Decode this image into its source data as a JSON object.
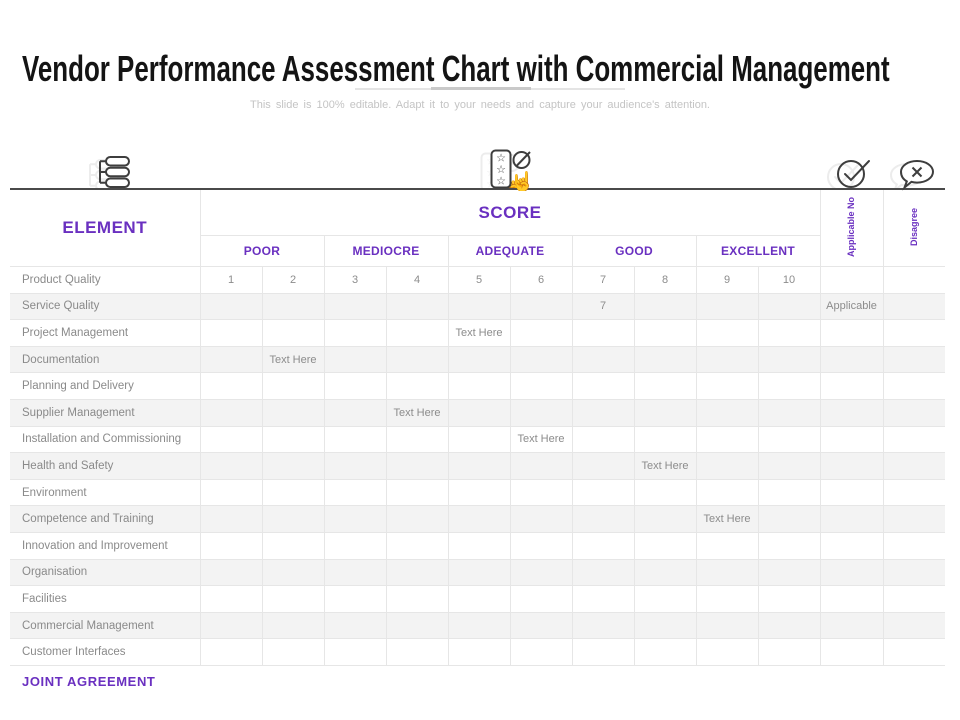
{
  "accent_color": "#6A30C0",
  "row_stripe_color": "#F3F3F3",
  "title": "Vendor Performance Assessment Chart with Commercial Management",
  "subtitle": "This slide is 100% editable. Adapt it to your needs and capture your audience's attention.",
  "icons": {
    "left": "hierarchy-list-icon",
    "center": "star-rating-click-icon",
    "right_check": "check-circle-icon",
    "right_dismiss": "dismiss-speech-bubble-icon"
  },
  "table": {
    "element_header": "ELEMENT",
    "score_header": "SCORE",
    "score_groups": [
      "POOR",
      "MEDIOCRE",
      "ADEQUATE",
      "GOOD",
      "EXCELLENT"
    ],
    "applicable_header": "Applicable No",
    "disagree_header": "Disagree",
    "rows": [
      {
        "label": "Product Quality",
        "cells": [
          "1",
          "2",
          "3",
          "4",
          "5",
          "6",
          "7",
          "8",
          "9",
          "10"
        ],
        "applicable": "",
        "disagree": ""
      },
      {
        "label": "Service Quality",
        "cells": [
          "",
          "",
          "",
          "",
          "",
          "",
          "7",
          "",
          "",
          ""
        ],
        "applicable": "Applicable",
        "disagree": ""
      },
      {
        "label": "Project Management",
        "cells": [
          "",
          "",
          "",
          "",
          "Text Here",
          "",
          "",
          "",
          "",
          ""
        ],
        "applicable": "",
        "disagree": ""
      },
      {
        "label": "Documentation",
        "cells": [
          "",
          "Text Here",
          "",
          "",
          "",
          "",
          "",
          "",
          "",
          ""
        ],
        "applicable": "",
        "disagree": ""
      },
      {
        "label": "Planning and Delivery",
        "cells": [
          "",
          "",
          "",
          "",
          "",
          "",
          "",
          "",
          "",
          ""
        ],
        "applicable": "",
        "disagree": ""
      },
      {
        "label": "Supplier Management",
        "cells": [
          "",
          "",
          "",
          "Text Here",
          "",
          "",
          "",
          "",
          "",
          ""
        ],
        "applicable": "",
        "disagree": ""
      },
      {
        "label": "Installation and Commissioning",
        "cells": [
          "",
          "",
          "",
          "",
          "",
          "Text Here",
          "",
          "",
          "",
          ""
        ],
        "applicable": "",
        "disagree": ""
      },
      {
        "label": "Health and Safety",
        "cells": [
          "",
          "",
          "",
          "",
          "",
          "",
          "",
          "Text Here",
          "",
          ""
        ],
        "applicable": "",
        "disagree": ""
      },
      {
        "label": "Environment",
        "cells": [
          "",
          "",
          "",
          "",
          "",
          "",
          "",
          "",
          "",
          ""
        ],
        "applicable": "",
        "disagree": ""
      },
      {
        "label": "Competence and Training",
        "cells": [
          "",
          "",
          "",
          "",
          "",
          "",
          "",
          "",
          "Text Here",
          ""
        ],
        "applicable": "",
        "disagree": ""
      },
      {
        "label": "Innovation and Improvement",
        "cells": [
          "",
          "",
          "",
          "",
          "",
          "",
          "",
          "",
          "",
          ""
        ],
        "applicable": "",
        "disagree": ""
      },
      {
        "label": "Organisation",
        "cells": [
          "",
          "",
          "",
          "",
          "",
          "",
          "",
          "",
          "",
          ""
        ],
        "applicable": "",
        "disagree": ""
      },
      {
        "label": "Facilities",
        "cells": [
          "",
          "",
          "",
          "",
          "",
          "",
          "",
          "",
          "",
          ""
        ],
        "applicable": "",
        "disagree": ""
      },
      {
        "label": "Commercial Management",
        "cells": [
          "",
          "",
          "",
          "",
          "",
          "",
          "",
          "",
          "",
          ""
        ],
        "applicable": "",
        "disagree": ""
      },
      {
        "label": "Customer Interfaces",
        "cells": [
          "",
          "",
          "",
          "",
          "",
          "",
          "",
          "",
          "",
          ""
        ],
        "applicable": "",
        "disagree": ""
      }
    ]
  },
  "footer": "JOINT AGREEMENT"
}
